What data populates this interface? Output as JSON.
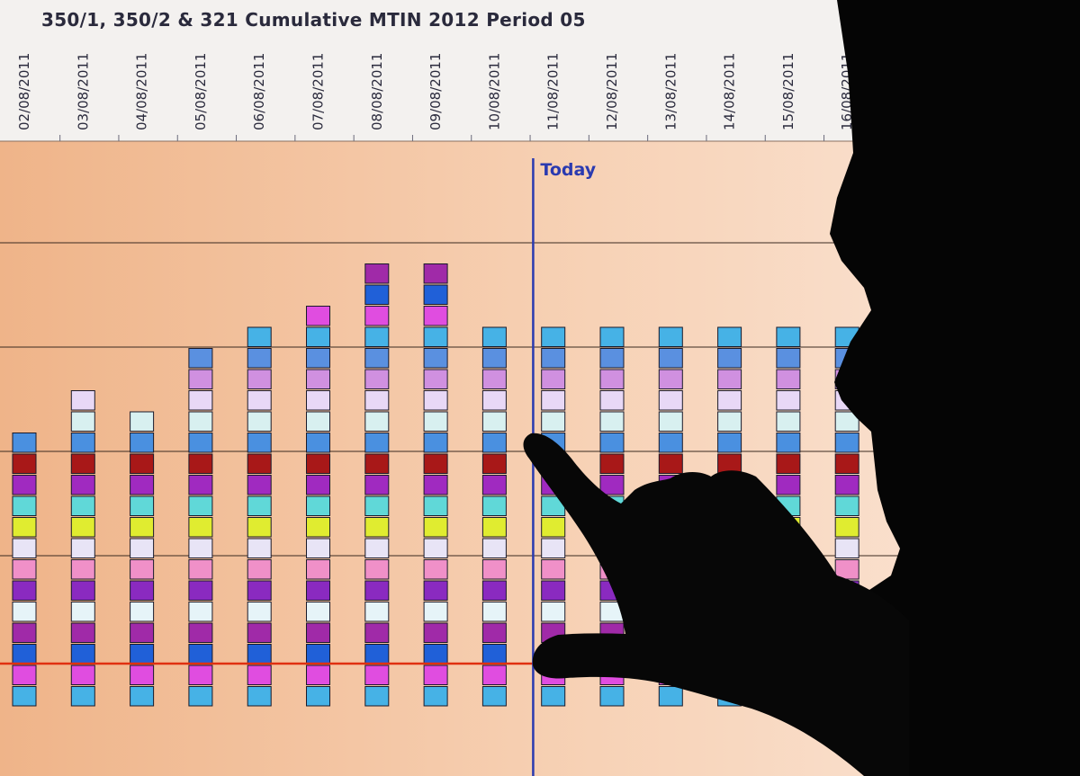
{
  "chart_data": {
    "type": "bar",
    "title": "350/1, 350/2 & 321 Cumulative MTIN 2012 Period 05",
    "categories": [
      "02/08/2011",
      "03/08/2011",
      "04/08/2011",
      "05/08/2011",
      "06/08/2011",
      "07/08/2011",
      "08/08/2011",
      "09/08/2011",
      "10/08/2011",
      "11/08/2011",
      "12/08/2011",
      "13/08/2011",
      "14/08/2011",
      "15/08/2011",
      "16/08/2011"
    ],
    "stacked": true,
    "segment_colors": [
      "#46b2e6",
      "#e04de0",
      "#2060d8",
      "#a02aa8",
      "#e6f4f8",
      "#8a2ac0",
      "#f090c8",
      "#e8e4f6",
      "#e0ec30",
      "#60d8d8",
      "#a02ac0",
      "#a81818",
      "#4a90e0",
      "#d8f0f0",
      "#e8d8f6",
      "#d090e0",
      "#5a90e0"
    ],
    "values": [
      13,
      15,
      14,
      17,
      18,
      19,
      21,
      21,
      18,
      18,
      18,
      18,
      18,
      18,
      18
    ],
    "annotations": [
      {
        "text": "Today",
        "x": "10/08/2011"
      }
    ],
    "reference_line": {
      "color": "#e03010"
    },
    "grid": true,
    "legend": "none"
  }
}
